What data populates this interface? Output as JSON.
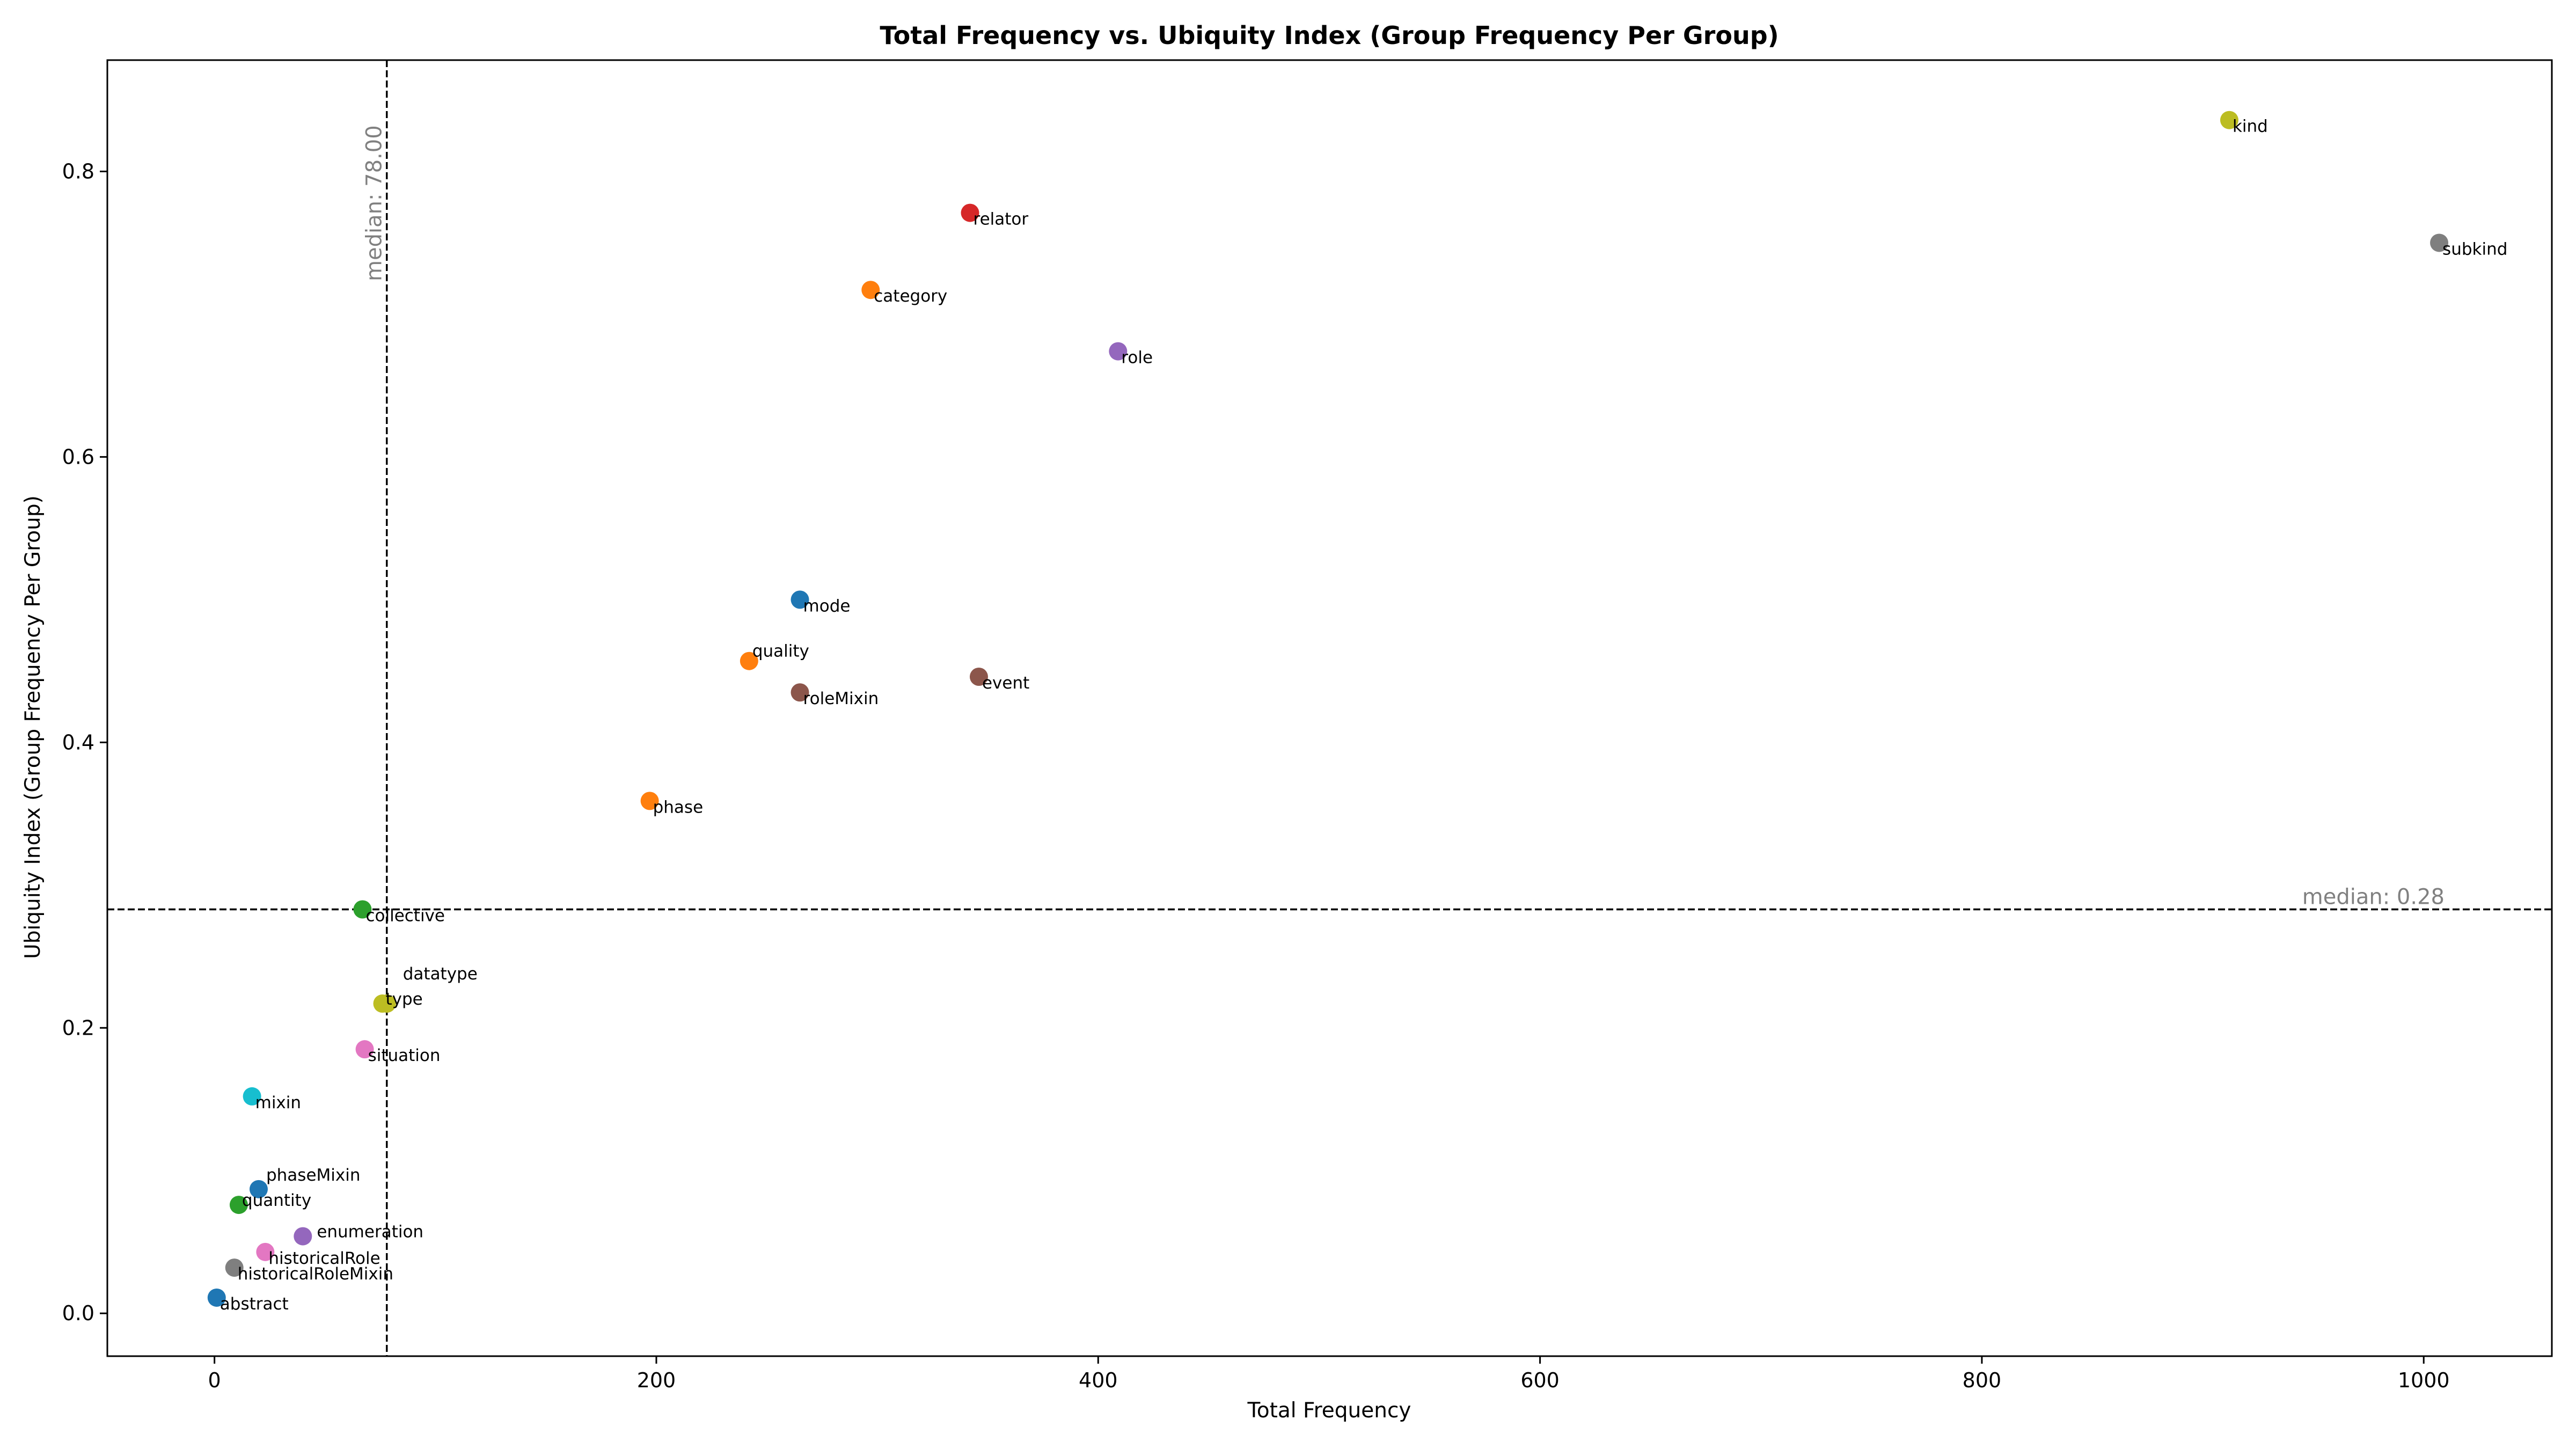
{
  "chart_data": {
    "type": "scatter",
    "title": "Total Frequency vs. Ubiquity Index (Group Frequency Per Group)",
    "xlabel": "Total Frequency",
    "ylabel": "Ubiquity Index (Group Frequency Per Group)",
    "xlim": [
      -48.5,
      1058
    ],
    "ylim": [
      -0.03,
      0.878
    ],
    "xticks": [
      0,
      200,
      400,
      600,
      800,
      1000
    ],
    "yticks": [
      0.0,
      0.2,
      0.4,
      0.6,
      0.8
    ],
    "xtick_labels": [
      "0",
      "200",
      "400",
      "600",
      "800",
      "1000"
    ],
    "ytick_labels": [
      "0.0",
      "0.2",
      "0.4",
      "0.6",
      "0.8"
    ],
    "grid": false,
    "median_x": {
      "value": 78.0,
      "label": "median: 78.00"
    },
    "median_y": {
      "value": 0.283,
      "label": "median: 0.28"
    },
    "points": [
      {
        "label": "kind",
        "x": 912,
        "y": 0.836,
        "color": "#bcbd22"
      },
      {
        "label": "subkind",
        "x": 1007,
        "y": 0.75,
        "color": "#7f7f7f"
      },
      {
        "label": "relator",
        "x": 342,
        "y": 0.771,
        "color": "#d62728"
      },
      {
        "label": "category",
        "x": 297,
        "y": 0.717,
        "color": "#ff7f0e"
      },
      {
        "label": "role",
        "x": 409,
        "y": 0.674,
        "color": "#9467bd"
      },
      {
        "label": "mode",
        "x": 265,
        "y": 0.5,
        "color": "#1f77b4"
      },
      {
        "label": "quality",
        "x": 242,
        "y": 0.457,
        "color": "#ff7f0e"
      },
      {
        "label": "roleMixin",
        "x": 265,
        "y": 0.435,
        "color": "#8c564b"
      },
      {
        "label": "event",
        "x": 346,
        "y": 0.446,
        "color": "#8c564b"
      },
      {
        "label": "phase",
        "x": 197,
        "y": 0.359,
        "color": "#ff7f0e"
      },
      {
        "label": "collective",
        "x": 67,
        "y": 0.283,
        "color": "#2ca02c"
      },
      {
        "label": "datatype",
        "x": 78,
        "y": 0.217,
        "color": "#bcbd22"
      },
      {
        "label": "type",
        "x": 76,
        "y": 0.217,
        "color": "#bcbd22"
      },
      {
        "label": "situation",
        "x": 68,
        "y": 0.185,
        "color": "#e377c2"
      },
      {
        "label": "mixin",
        "x": 17,
        "y": 0.152,
        "color": "#17becf"
      },
      {
        "label": "phaseMixin",
        "x": 20,
        "y": 0.087,
        "color": "#1f77b4"
      },
      {
        "label": "quantity",
        "x": 11,
        "y": 0.076,
        "color": "#2ca02c"
      },
      {
        "label": "enumeration",
        "x": 40,
        "y": 0.054,
        "color": "#9467bd"
      },
      {
        "label": "historicalRole",
        "x": 23,
        "y": 0.043,
        "color": "#e377c2"
      },
      {
        "label": "historicalRoleMixin",
        "x": 9,
        "y": 0.032,
        "color": "#7f7f7f"
      },
      {
        "label": "abstract",
        "x": 1,
        "y": 0.011,
        "color": "#1f77b4"
      }
    ]
  }
}
